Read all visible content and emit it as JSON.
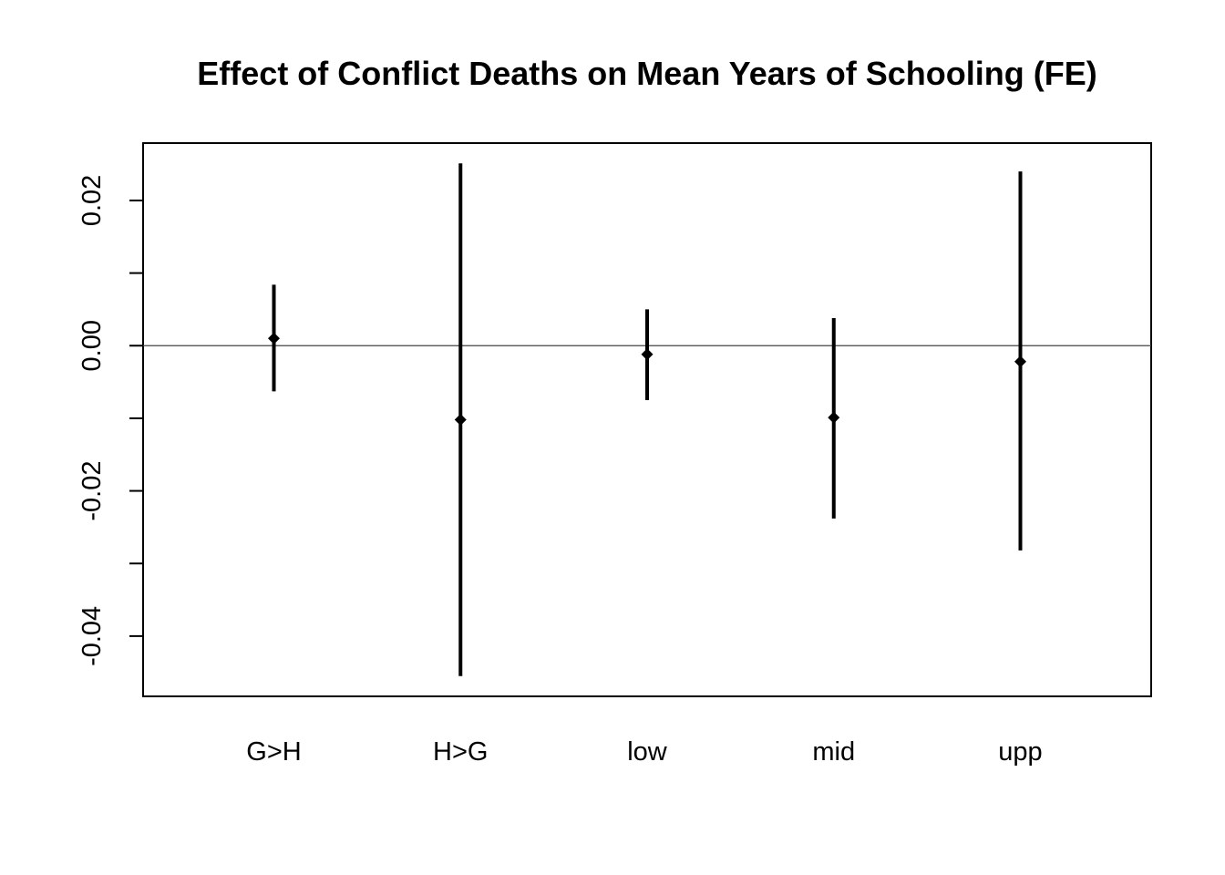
{
  "chart_data": {
    "type": "errorbar",
    "title": "Effect of Conflict Deaths on Mean Years of Schooling (FE)",
    "xlabel": "",
    "ylabel": "",
    "categories": [
      "G>H",
      "H>G",
      "low",
      "mid",
      "upp"
    ],
    "estimates": [
      0.001,
      -0.0102,
      -0.0012,
      -0.0099,
      -0.0022
    ],
    "lower": [
      -0.0063,
      -0.0455,
      -0.0075,
      -0.0238,
      -0.0282
    ],
    "upper": [
      0.0084,
      0.0251,
      0.005,
      0.0038,
      0.024
    ],
    "reference_line": 0,
    "yticks": [
      -0.04,
      -0.02,
      0.0,
      0.02
    ],
    "ytick_labels": [
      "-0.04",
      "-0.02",
      "0.00",
      "0.02"
    ],
    "yminor_ticks": [
      -0.03,
      -0.01,
      0.01
    ],
    "ylim": [
      -0.0483,
      0.0279
    ],
    "grid": false,
    "legend": "none"
  }
}
